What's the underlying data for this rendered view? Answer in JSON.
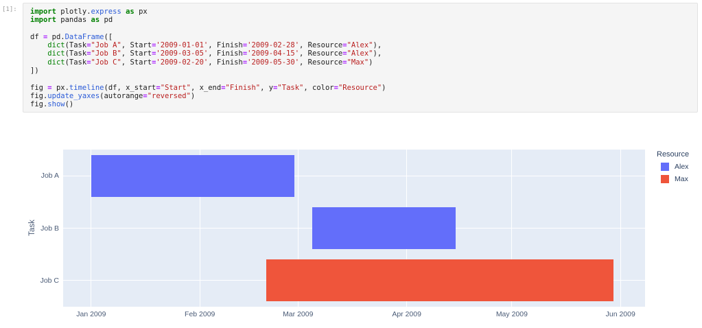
{
  "notebook": {
    "prompt": "[1]:"
  },
  "code": {
    "lines": [
      [
        [
          "k",
          "import"
        ],
        [
          "p",
          " plotly."
        ],
        [
          "f",
          "express"
        ],
        [
          "p",
          " "
        ],
        [
          "k",
          "as"
        ],
        [
          "p",
          " px"
        ]
      ],
      [
        [
          "k",
          "import"
        ],
        [
          "p",
          " pandas "
        ],
        [
          "k",
          "as"
        ],
        [
          "p",
          " pd"
        ]
      ],
      [],
      [
        [
          "p",
          "df "
        ],
        [
          "o",
          "="
        ],
        [
          "p",
          " pd."
        ],
        [
          "f",
          "DataFrame"
        ],
        [
          "p",
          "(["
        ]
      ],
      [
        [
          "p",
          "    "
        ],
        [
          "b",
          "dict"
        ],
        [
          "p",
          "(Task"
        ],
        [
          "o",
          "="
        ],
        [
          "s",
          "\"Job A\""
        ],
        [
          "p",
          ", Start"
        ],
        [
          "o",
          "="
        ],
        [
          "s",
          "'2009-01-01'"
        ],
        [
          "p",
          ", Finish"
        ],
        [
          "o",
          "="
        ],
        [
          "s",
          "'2009-02-28'"
        ],
        [
          "p",
          ", Resource"
        ],
        [
          "o",
          "="
        ],
        [
          "s",
          "\"Alex\""
        ],
        [
          "p",
          "),"
        ]
      ],
      [
        [
          "p",
          "    "
        ],
        [
          "b",
          "dict"
        ],
        [
          "p",
          "(Task"
        ],
        [
          "o",
          "="
        ],
        [
          "s",
          "\"Job B\""
        ],
        [
          "p",
          ", Start"
        ],
        [
          "o",
          "="
        ],
        [
          "s",
          "'2009-03-05'"
        ],
        [
          "p",
          ", Finish"
        ],
        [
          "o",
          "="
        ],
        [
          "s",
          "'2009-04-15'"
        ],
        [
          "p",
          ", Resource"
        ],
        [
          "o",
          "="
        ],
        [
          "s",
          "\"Alex\""
        ],
        [
          "p",
          "),"
        ]
      ],
      [
        [
          "p",
          "    "
        ],
        [
          "b",
          "dict"
        ],
        [
          "p",
          "(Task"
        ],
        [
          "o",
          "="
        ],
        [
          "s",
          "\"Job C\""
        ],
        [
          "p",
          ", Start"
        ],
        [
          "o",
          "="
        ],
        [
          "s",
          "'2009-02-20'"
        ],
        [
          "p",
          ", Finish"
        ],
        [
          "o",
          "="
        ],
        [
          "s",
          "'2009-05-30'"
        ],
        [
          "p",
          ", Resource"
        ],
        [
          "o",
          "="
        ],
        [
          "s",
          "\"Max\""
        ],
        [
          "p",
          ")"
        ]
      ],
      [
        [
          "p",
          "])"
        ]
      ],
      [],
      [
        [
          "p",
          "fig "
        ],
        [
          "o",
          "="
        ],
        [
          "p",
          " px."
        ],
        [
          "f",
          "timeline"
        ],
        [
          "p",
          "(df, x_start"
        ],
        [
          "o",
          "="
        ],
        [
          "s",
          "\"Start\""
        ],
        [
          "p",
          ", x_end"
        ],
        [
          "o",
          "="
        ],
        [
          "s",
          "\"Finish\""
        ],
        [
          "p",
          ", y"
        ],
        [
          "o",
          "="
        ],
        [
          "s",
          "\"Task\""
        ],
        [
          "p",
          ", color"
        ],
        [
          "o",
          "="
        ],
        [
          "s",
          "\"Resource\""
        ],
        [
          "p",
          ")"
        ]
      ],
      [
        [
          "p",
          "fig."
        ],
        [
          "f",
          "update_yaxes"
        ],
        [
          "p",
          "(autorange"
        ],
        [
          "o",
          "="
        ],
        [
          "s",
          "\"reversed\""
        ],
        [
          "p",
          ")"
        ]
      ],
      [
        [
          "p",
          "fig."
        ],
        [
          "f",
          "show"
        ],
        [
          "p",
          "()"
        ]
      ]
    ]
  },
  "chart_data": {
    "type": "bar",
    "subtype": "gantt-timeline",
    "orientation": "horizontal",
    "title": "",
    "xlabel": "",
    "ylabel": "Task",
    "y_categories": [
      "Job A",
      "Job B",
      "Job C"
    ],
    "y_axis_reversed": true,
    "tasks": [
      {
        "task": "Job A",
        "start": "2009-01-01",
        "finish": "2009-02-28",
        "resource": "Alex"
      },
      {
        "task": "Job B",
        "start": "2009-03-05",
        "finish": "2009-04-15",
        "resource": "Alex"
      },
      {
        "task": "Job C",
        "start": "2009-02-20",
        "finish": "2009-05-30",
        "resource": "Max"
      }
    ],
    "legend_title": "Resource",
    "legend_entries": [
      "Alex",
      "Max"
    ],
    "series_colors": {
      "Alex": "#636efa",
      "Max": "#ef553b"
    },
    "x_ticks": [
      {
        "date": "2009-01-01",
        "label": "Jan 2009"
      },
      {
        "date": "2009-02-01",
        "label": "Feb 2009"
      },
      {
        "date": "2009-03-01",
        "label": "Mar 2009"
      },
      {
        "date": "2009-04-01",
        "label": "Apr 2009"
      },
      {
        "date": "2009-05-01",
        "label": "May 2009"
      },
      {
        "date": "2009-06-01",
        "label": "Jun 2009"
      }
    ],
    "x_range": [
      "2008-12-24",
      "2009-06-08"
    ],
    "plot_bgcolor": "#e5ecf6",
    "gridcolor": "#ffffff",
    "grid": true,
    "legend_position": "top-right-outside",
    "bar_band_fraction": 0.8
  }
}
